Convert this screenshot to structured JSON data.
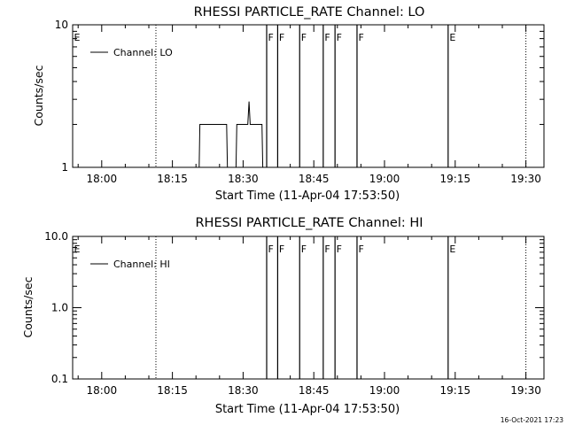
{
  "stamp": "16-Oct-2021 17:23",
  "chart_data": [
    {
      "type": "line",
      "title": "RHESSI PARTICLE_RATE Channel: LO",
      "xlabel": "Start Time (11-Apr-04 17:53:50)",
      "ylabel": "Counts/sec",
      "x_tick_labels": [
        "18:00",
        "18:15",
        "18:30",
        "18:45",
        "19:00",
        "19:15",
        "19:30"
      ],
      "y_tick_labels": [
        "1",
        "10"
      ],
      "y_scale": "log",
      "ylim": [
        1,
        10
      ],
      "xlim": [
        "17:53:50",
        "19:33:50"
      ],
      "legend": {
        "label": "Channel: LO",
        "position": "top-left"
      },
      "series": [
        {
          "name": "Channel: LO",
          "points": [
            [
              "18:11:00",
              1
            ],
            [
              "18:12:00",
              1
            ],
            [
              "18:13:00",
              1
            ],
            [
              "18:14:00",
              1
            ],
            [
              "18:15:00",
              1
            ],
            [
              "18:16:00",
              1
            ],
            [
              "18:17:00",
              1
            ],
            [
              "18:18:00",
              1
            ],
            [
              "18:19:00",
              1
            ],
            [
              "18:20:00",
              1
            ],
            [
              "18:20:40",
              1
            ],
            [
              "18:20:50",
              2
            ],
            [
              "18:22:00",
              2
            ],
            [
              "18:23:00",
              2
            ],
            [
              "18:24:00",
              2
            ],
            [
              "18:25:00",
              2
            ],
            [
              "18:26:30",
              2
            ],
            [
              "18:26:40",
              1
            ],
            [
              "18:27:30",
              1
            ],
            [
              "18:28:30",
              1
            ],
            [
              "18:28:40",
              2
            ],
            [
              "18:30:00",
              2
            ],
            [
              "18:31:00",
              2
            ],
            [
              "18:31:15",
              2.9
            ],
            [
              "18:31:30",
              2
            ],
            [
              "18:32:30",
              2
            ],
            [
              "18:34:00",
              2
            ],
            [
              "18:34:10",
              1
            ],
            [
              "18:35:00",
              1
            ]
          ]
        }
      ],
      "markers": [
        {
          "label": "E",
          "time": "17:53:50",
          "style": "dotted"
        },
        {
          "label": "F",
          "time": "18:35:00",
          "style": "solid"
        },
        {
          "label": "F",
          "time": "18:37:20",
          "style": "solid"
        },
        {
          "label": "F",
          "time": "18:42:00",
          "style": "solid"
        },
        {
          "label": "F",
          "time": "18:47:00",
          "style": "solid"
        },
        {
          "label": "F",
          "time": "18:49:30",
          "style": "solid"
        },
        {
          "label": "F",
          "time": "18:54:10",
          "style": "solid"
        },
        {
          "label": "E",
          "time": "19:13:30",
          "style": "solid"
        }
      ],
      "gridlines": [
        {
          "time": "18:11:30",
          "style": "dotted"
        },
        {
          "time": "19:30:00",
          "style": "dotted"
        }
      ]
    },
    {
      "type": "line",
      "title": "RHESSI PARTICLE_RATE Channel: HI",
      "xlabel": "Start Time (11-Apr-04 17:53:50)",
      "ylabel": "Counts/sec",
      "x_tick_labels": [
        "18:00",
        "18:15",
        "18:30",
        "18:45",
        "19:00",
        "19:15",
        "19:30"
      ],
      "y_tick_labels": [
        "0.1",
        "1.0",
        "10.0"
      ],
      "y_scale": "log",
      "ylim": [
        0.1,
        10
      ],
      "xlim": [
        "17:53:50",
        "19:33:50"
      ],
      "legend": {
        "label": "Channel: HI",
        "position": "top-left"
      },
      "series": [
        {
          "name": "Channel: HI",
          "points": []
        }
      ],
      "markers": [
        {
          "label": "E",
          "time": "17:53:50",
          "style": "dotted"
        },
        {
          "label": "F",
          "time": "18:35:00",
          "style": "solid"
        },
        {
          "label": "F",
          "time": "18:37:20",
          "style": "solid"
        },
        {
          "label": "F",
          "time": "18:42:00",
          "style": "solid"
        },
        {
          "label": "F",
          "time": "18:47:00",
          "style": "solid"
        },
        {
          "label": "F",
          "time": "18:49:30",
          "style": "solid"
        },
        {
          "label": "F",
          "time": "18:54:10",
          "style": "solid"
        },
        {
          "label": "E",
          "time": "19:13:30",
          "style": "solid"
        }
      ],
      "gridlines": [
        {
          "time": "18:11:30",
          "style": "dotted"
        },
        {
          "time": "19:30:00",
          "style": "dotted"
        }
      ]
    }
  ]
}
